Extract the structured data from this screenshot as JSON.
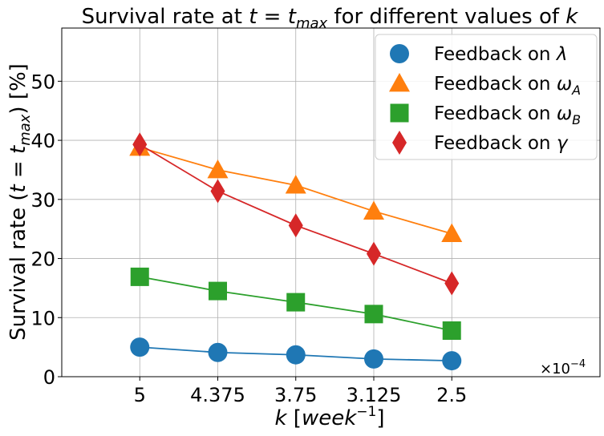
{
  "chart_data": {
    "type": "line",
    "title": {
      "prefix": "Survival rate at ",
      "var": "t",
      "eq": " = ",
      "var2": "t",
      "sub": "max",
      "mid": " for different values of ",
      "k": "k"
    },
    "xlabel": {
      "var": "k",
      "unit_open": " [",
      "unit": "week",
      "exp": "−1",
      "unit_close": "]"
    },
    "ylabel": {
      "prefix": "Survival rate (",
      "var": "t",
      "eq": " = ",
      "var2": "t",
      "sub": "max",
      "suffix": ") [%]"
    },
    "x_tick_labels": [
      "5",
      "4.375",
      "3.75",
      "3.125",
      "2.5"
    ],
    "x_values": [
      5,
      4.375,
      3.75,
      3.125,
      2.5
    ],
    "x_multiplier": {
      "base": "×10",
      "exp": "−4"
    },
    "y_ticks": [
      0,
      10,
      20,
      30,
      40,
      50
    ],
    "ylim": [
      0,
      59
    ],
    "grid": true,
    "legend_position": "top-right",
    "series": [
      {
        "legend": {
          "text": "Feedback on ",
          "sym": "λ",
          "sub": ""
        },
        "color": "#1f77b4",
        "marker": "circle",
        "values": [
          5.0,
          4.1,
          3.7,
          3.0,
          2.7
        ]
      },
      {
        "legend": {
          "text": "Feedback on ",
          "sym": "ω",
          "sub": "A"
        },
        "color": "#ff7f0e",
        "marker": "triangle",
        "values": [
          38.8,
          35.0,
          32.4,
          28.0,
          24.2
        ]
      },
      {
        "legend": {
          "text": "Feedback on ",
          "sym": "ω",
          "sub": "B"
        },
        "color": "#2ca02c",
        "marker": "square",
        "values": [
          16.9,
          14.5,
          12.6,
          10.6,
          7.8
        ]
      },
      {
        "legend": {
          "text": "Feedback on ",
          "sym": "γ",
          "sub": ""
        },
        "color": "#d62728",
        "marker": "diamond",
        "values": [
          39.3,
          31.4,
          25.6,
          20.8,
          15.8
        ]
      }
    ]
  }
}
